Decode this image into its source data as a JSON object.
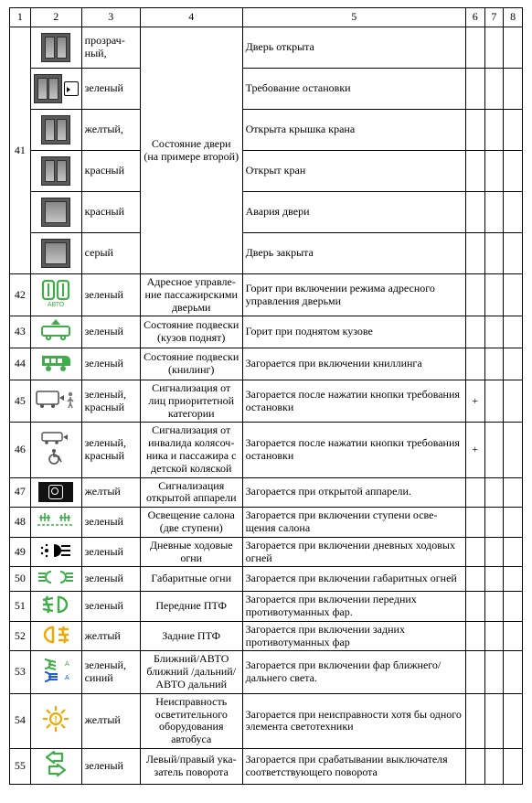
{
  "colors": {
    "green": "#3fae49",
    "yellow": "#f0a800",
    "blue": "#1a5fd8",
    "black": "#111111",
    "grey": "#8a8a8a"
  },
  "header": [
    "1",
    "2",
    "3",
    "4",
    "5",
    "6",
    "7",
    "8"
  ],
  "row41": {
    "num": "41",
    "state": "Состояние двери (на примере вто­рой)",
    "sub": [
      {
        "door": "split",
        "extra": "",
        "color": "прозрач­ный,",
        "desc": "Дверь открыта"
      },
      {
        "door": "split",
        "extra": "bus",
        "color": "зеленый",
        "desc": "Требование остановки"
      },
      {
        "door": "split",
        "extra": "",
        "color": "желтый,",
        "desc": "Открыта крышка крана"
      },
      {
        "door": "split",
        "extra": "",
        "color": "красный",
        "desc": "Открыт кран"
      },
      {
        "door": "full",
        "extra": "",
        "color": "красный",
        "desc": "Авария двери"
      },
      {
        "door": "full",
        "extra": "",
        "color": "серый",
        "desc": "Дверь закрыта"
      }
    ]
  },
  "rows": [
    {
      "num": "42",
      "icon": "doors-auto",
      "icon_color": "green",
      "color": "зеленый",
      "state": "Адресное управле­ние пассажирскими дверьми",
      "desc": "Горит при включении режима адресного управления дверьми",
      "c6": "",
      "c7": "",
      "c8": ""
    },
    {
      "num": "43",
      "icon": "bus-up",
      "icon_color": "green",
      "color": "зеленый",
      "state": "Состояние подвес­ки (кузов поднят)",
      "desc": "Горит при поднятом кузове",
      "c6": "",
      "c7": "",
      "c8": ""
    },
    {
      "num": "44",
      "icon": "bus-kneel",
      "icon_color": "green",
      "color": "зеленый",
      "state": "Состояние подвески (книлинг)",
      "desc": "Загорается при включении книллинга",
      "c6": "",
      "c7": "",
      "c8": ""
    },
    {
      "num": "45",
      "icon": "bus-priority",
      "icon_color": "grey",
      "color": "зеленый, красный",
      "state": "Сигнализация от лиц приоритетной категории",
      "desc": "Загорается после нажатии кнопки требо­вания остановки",
      "c6": "+",
      "c7": "",
      "c8": ""
    },
    {
      "num": "46",
      "icon": "bus-wheelchair",
      "icon_color": "grey",
      "color": "зеленый, красный",
      "state": "Сигнализация от инвалида колясоч­ника и пассажира с детской коляской",
      "desc": "Загорается после нажатии кнопки требо­вания остановки",
      "c6": "+",
      "c7": "",
      "c8": ""
    },
    {
      "num": "47",
      "icon": "ramp",
      "icon_color": "black",
      "color": "желтый",
      "state": "Сигнализация открытой аппарели",
      "desc": "Загорается при открытой аппарели.",
      "c6": "",
      "c7": "",
      "c8": ""
    },
    {
      "num": "48",
      "icon": "steps",
      "icon_color": "green",
      "color": "зеленый",
      "state": "Освещение салона (две ступени)",
      "desc": "Загорается при включении ступени осве­щения салона",
      "c6": "",
      "c7": "",
      "c8": ""
    },
    {
      "num": "49",
      "icon": "drl",
      "icon_color": "black",
      "color": "зеленый",
      "state": "Дневные ходовые огни",
      "desc": "Загорается при включении дневных ходовых огней",
      "c6": "",
      "c7": "",
      "c8": ""
    },
    {
      "num": "50",
      "icon": "park-lights",
      "icon_color": "green",
      "color": "зеленый",
      "state": "Габаритные огни",
      "desc": "Загорается при включении габаритных огней",
      "c6": "",
      "c7": "",
      "c8": ""
    },
    {
      "num": "51",
      "icon": "fog-front",
      "icon_color": "green",
      "color": "зеленый",
      "state": "Передние ПТФ",
      "desc": "Загорается при включении передних противотуманных фар.",
      "c6": "",
      "c7": "",
      "c8": ""
    },
    {
      "num": "52",
      "icon": "fog-rear",
      "icon_color": "yellow",
      "color": "желтый",
      "state": "Задние ПТФ",
      "desc": "Загорается при включении задних противотуманных фар",
      "c6": "",
      "c7": "",
      "c8": ""
    },
    {
      "num": "53",
      "icon": "beam-auto",
      "icon_color": "green",
      "color": "зеленый, синий",
      "state": "Ближний/АВТО ближний /дальний/АВТО дальний",
      "desc": "Загорается при включении фар ближне­го/дальнего света.",
      "c6": "",
      "c7": "",
      "c8": ""
    },
    {
      "num": "54",
      "icon": "lamp-fault",
      "icon_color": "yellow",
      "color": "желтый",
      "state": "Неисправность осветительного оборудования автобуса",
      "desc": "Загорается при неисправности хотя бы одного элемента светотехники",
      "c6": "",
      "c7": "",
      "c8": ""
    },
    {
      "num": "55",
      "icon": "turn-lr",
      "icon_color": "green",
      "color": "зеленый",
      "state": "Левый/правый ука­затель поворота",
      "desc": "Загорается при срабатывании выключателя соответствующего поворота",
      "c6": "",
      "c7": "",
      "c8": ""
    }
  ]
}
